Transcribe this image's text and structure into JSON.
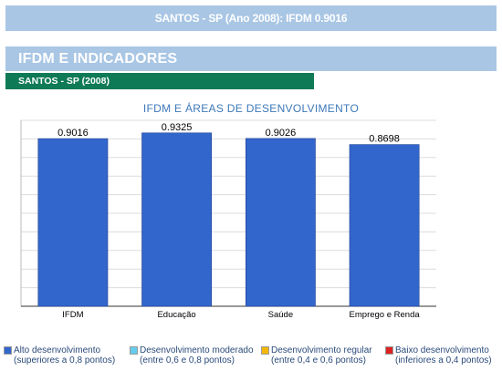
{
  "banner": {
    "title": "SANTOS - SP (Ano 2008): IFDM 0.9016"
  },
  "section": {
    "title": "IFDM E INDICADORES"
  },
  "subheader": {
    "label": "SANTOS - SP (2008)"
  },
  "chart_data": {
    "type": "bar",
    "title": "IFDM E ÁREAS DE DESENVOLVIMENTO",
    "categories": [
      "IFDM",
      "Educação",
      "Saúde",
      "Emprego e Renda"
    ],
    "values": [
      0.9016,
      0.9325,
      0.9026,
      0.8698
    ],
    "value_labels": [
      "0.9016",
      "0.9325",
      "0.9026",
      "0.8698"
    ],
    "ylim": [
      0,
      1
    ],
    "grid": true,
    "bar_color": "#3366cc",
    "legend_position": "bottom"
  },
  "legend": [
    {
      "line1": "Alto desenvolvimento",
      "line2": "(superiores a 0,8 pontos)",
      "color": "#3366cc"
    },
    {
      "line1": "Desenvolvimento moderado",
      "line2": "(entre 0,6 e 0,8 pontos)",
      "color": "#66ccee"
    },
    {
      "line1": "Desenvolvimento regular",
      "line2": "(entre 0,4 e 0,6 pontos)",
      "color": "#f2b800"
    },
    {
      "line1": "Baixo desenvolvimento",
      "line2": "(inferiores a 0,4 pontos)",
      "color": "#dd2222"
    }
  ]
}
